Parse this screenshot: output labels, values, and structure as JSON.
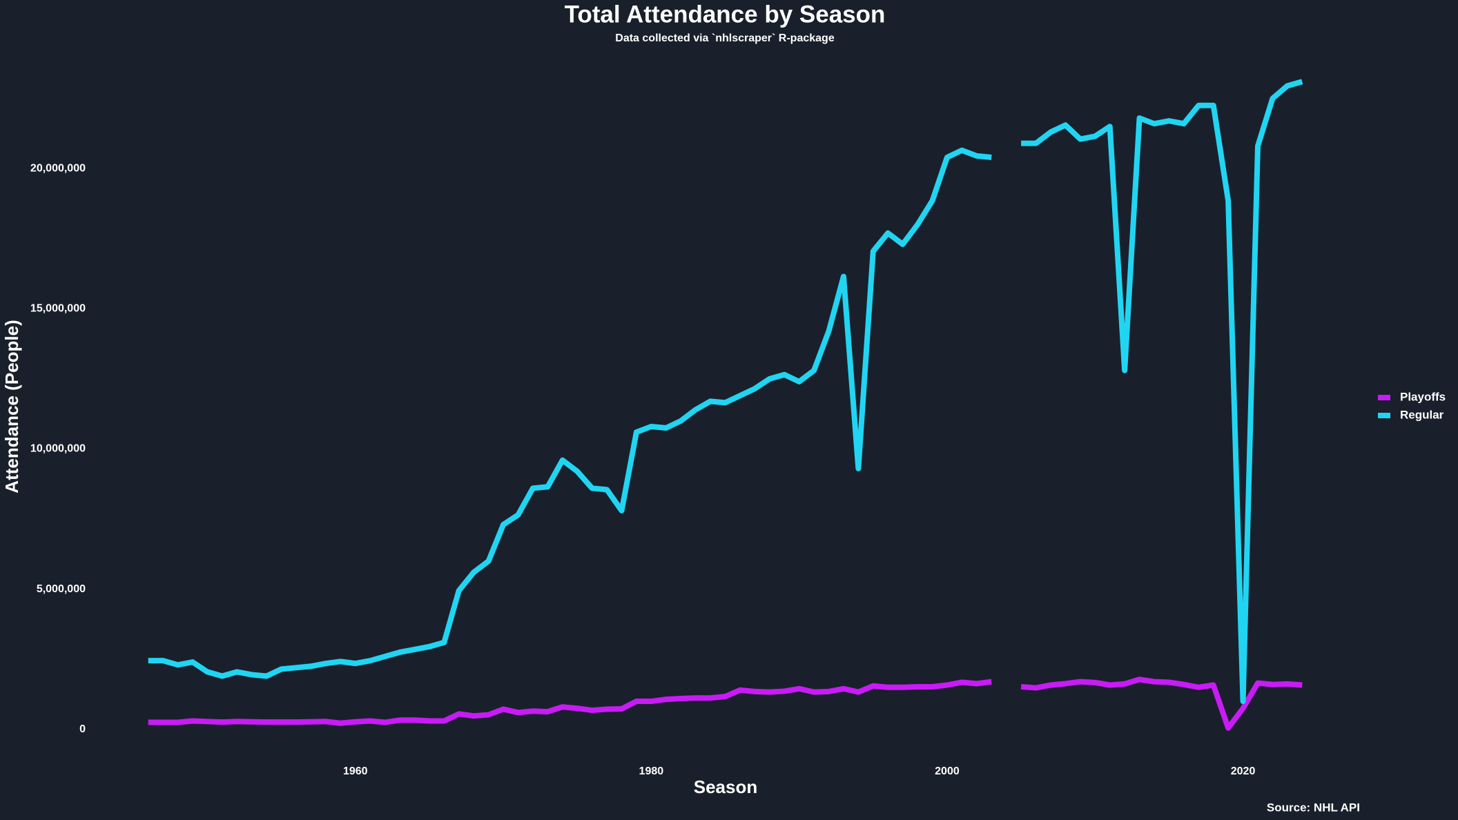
{
  "chart_data": {
    "type": "line",
    "title": "Total Attendance by Season",
    "subtitle": "Data collected via `nhlscraper` R-package",
    "x_label": "Season",
    "y_label": "Attendance (People)",
    "caption": "Source: NHL API",
    "x": [
      1946,
      1947,
      1948,
      1949,
      1950,
      1951,
      1952,
      1953,
      1954,
      1955,
      1956,
      1957,
      1958,
      1959,
      1960,
      1961,
      1962,
      1963,
      1964,
      1965,
      1966,
      1967,
      1968,
      1969,
      1970,
      1971,
      1972,
      1973,
      1974,
      1975,
      1976,
      1977,
      1978,
      1979,
      1980,
      1981,
      1982,
      1983,
      1984,
      1985,
      1986,
      1987,
      1988,
      1989,
      1990,
      1991,
      1992,
      1993,
      1994,
      1995,
      1996,
      1997,
      1998,
      1999,
      2000,
      2001,
      2002,
      2003,
      2004,
      2005,
      2006,
      2007,
      2008,
      2009,
      2010,
      2011,
      2012,
      2013,
      2014,
      2015,
      2016,
      2017,
      2018,
      2019,
      2020,
      2021,
      2022,
      2023,
      2024
    ],
    "series": [
      {
        "name": "Playoffs",
        "color": "#c81bf5",
        "values": [
          250000,
          250000,
          250000,
          300000,
          280000,
          260000,
          280000,
          270000,
          260000,
          260000,
          260000,
          270000,
          280000,
          220000,
          270000,
          300000,
          250000,
          330000,
          330000,
          300000,
          300000,
          550000,
          480000,
          520000,
          720000,
          600000,
          650000,
          630000,
          800000,
          750000,
          680000,
          720000,
          730000,
          1000000,
          1000000,
          1070000,
          1100000,
          1120000,
          1120000,
          1170000,
          1400000,
          1350000,
          1330000,
          1360000,
          1450000,
          1330000,
          1350000,
          1450000,
          1330000,
          1550000,
          1500000,
          1500000,
          1520000,
          1520000,
          1580000,
          1680000,
          1630000,
          1700000,
          null,
          1520000,
          1480000,
          1580000,
          1630000,
          1700000,
          1670000,
          1580000,
          1620000,
          1780000,
          1700000,
          1680000,
          1600000,
          1500000,
          1580000,
          50000,
          750000,
          1650000,
          1600000,
          1620000,
          1580000
        ]
      },
      {
        "name": "Regular",
        "color": "#21d5f2",
        "values": [
          2450000,
          2450000,
          2300000,
          2400000,
          2050000,
          1900000,
          2050000,
          1950000,
          1900000,
          2150000,
          2200000,
          2250000,
          2350000,
          2420000,
          2350000,
          2450000,
          2600000,
          2750000,
          2850000,
          2950000,
          3100000,
          4950000,
          5600000,
          6000000,
          7300000,
          7650000,
          8600000,
          8650000,
          9600000,
          9200000,
          8600000,
          8550000,
          7800000,
          10600000,
          10800000,
          10750000,
          11000000,
          11400000,
          11700000,
          11650000,
          11900000,
          12150000,
          12500000,
          12650000,
          12400000,
          12800000,
          14200000,
          16150000,
          9300000,
          17050000,
          17700000,
          17300000,
          18000000,
          18850000,
          20400000,
          20650000,
          20450000,
          20400000,
          null,
          20900000,
          20900000,
          21300000,
          21550000,
          21050000,
          21150000,
          21500000,
          12800000,
          21800000,
          21600000,
          21700000,
          21600000,
          22250000,
          22250000,
          18850000,
          1000000,
          20800000,
          22500000,
          22950000,
          23100000
        ]
      }
    ],
    "xlim": [
      1942,
      2028
    ],
    "xticks": [
      1960,
      1980,
      2000,
      2020
    ],
    "ylim": [
      -500000,
      23500000
    ],
    "yticks": [
      0,
      {
        "value": 5000000,
        "label": "5,000,000"
      },
      {
        "value": 10000000,
        "label": "10,000,000"
      },
      {
        "value": 15000000,
        "label": "15,000,000"
      },
      {
        "value": 20000000,
        "label": "20,000,000"
      }
    ],
    "grid": false,
    "legend": "right"
  }
}
